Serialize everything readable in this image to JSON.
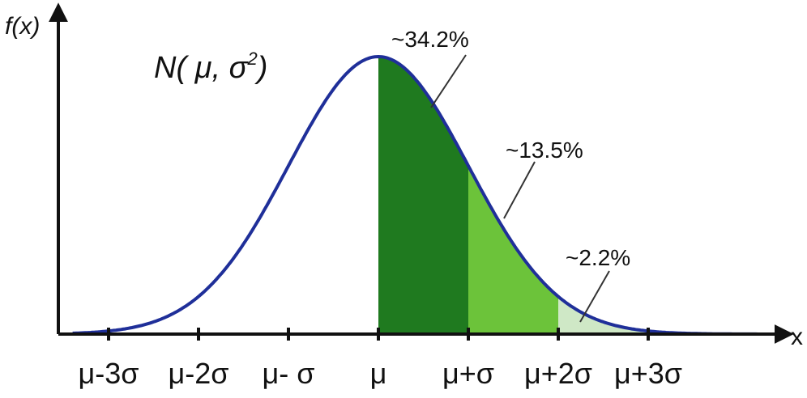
{
  "chart_data": {
    "type": "area",
    "title": "N( μ, σ²)",
    "title_main": "N( μ, σ",
    "title_sup": "2",
    "title_close": ")",
    "ylabel": "f(x)",
    "xlabel": "x",
    "x_domain_sigma": [
      -3.4,
      4.3
    ],
    "tick_positions_sigma": [
      -3,
      -2,
      -1,
      0,
      1,
      2,
      3
    ],
    "tick_labels": [
      "μ-3σ",
      "μ-2σ",
      "μ- σ",
      "μ",
      "μ+σ",
      "μ+2σ",
      "μ+3σ"
    ],
    "shaded_regions": [
      {
        "from_sigma": 0,
        "to_sigma": 1,
        "label": "~34.2%",
        "color": "#1f7a1f"
      },
      {
        "from_sigma": 1,
        "to_sigma": 2,
        "label": "~13.5%",
        "color": "#6cc33a"
      },
      {
        "from_sigma": 2,
        "to_sigma": 3,
        "label": "~2.2%",
        "color": "#cfe8c6"
      }
    ],
    "curve_color": "#1f2f99",
    "axis_color": "#111111",
    "grid": false
  }
}
